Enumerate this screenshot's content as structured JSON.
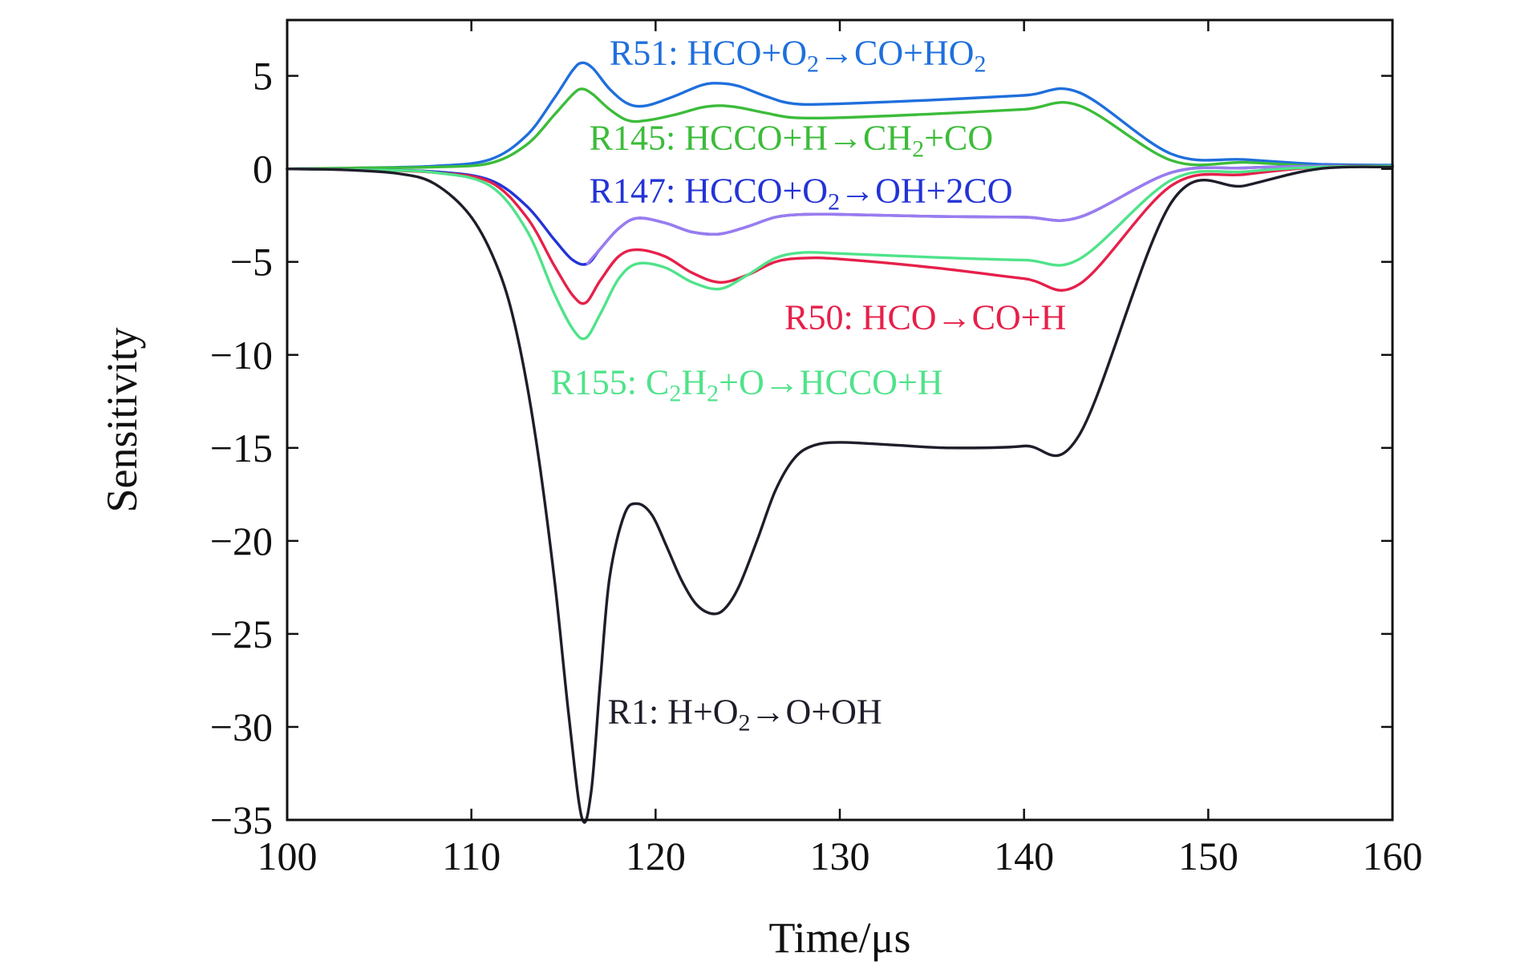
{
  "chart_data": {
    "type": "line",
    "xlabel": "Time/μs",
    "ylabel": "Sensitivity",
    "xlim": [
      100,
      160
    ],
    "ylim": [
      -35,
      8
    ],
    "xticks": [
      100,
      110,
      120,
      130,
      140,
      150,
      160
    ],
    "yticks": [
      5,
      0,
      -5,
      -10,
      -15,
      -20,
      -25,
      -30,
      -35
    ],
    "tick_labels": {
      "x": [
        "100",
        "110",
        "120",
        "130",
        "140",
        "150",
        "160"
      ],
      "y": [
        "5",
        "0",
        "−5",
        "−10",
        "−15",
        "−20",
        "−25",
        "−30",
        "−35"
      ]
    },
    "grid": false,
    "legend": "none",
    "series": [
      {
        "key": "r51",
        "color": "#1f6fdc",
        "label": {
          "parts": [
            [
              "R51: HCO+O",
              ""
            ],
            [
              "2",
              "sub"
            ],
            [
              "→CO+HO",
              ""
            ],
            [
              "2",
              "sub"
            ]
          ],
          "at": [
            117.5,
            5.6
          ]
        },
        "x": [
          100,
          104,
          108,
          111,
          113,
          114.5,
          115.5,
          116,
          116.6,
          117.5,
          118.5,
          119.5,
          121,
          122.5,
          123.5,
          124.5,
          126,
          127.5,
          130,
          135,
          140,
          143,
          148,
          152,
          156,
          160
        ],
        "y": [
          0,
          0.05,
          0.15,
          0.5,
          1.8,
          3.8,
          5.3,
          5.7,
          5.4,
          4.3,
          3.5,
          3.4,
          3.9,
          4.5,
          4.6,
          4.45,
          3.9,
          3.5,
          3.5,
          3.7,
          3.95,
          4.1,
          0.8,
          0.5,
          0.25,
          0.2
        ]
      },
      {
        "key": "r145",
        "color": "#3cbc3a",
        "label": {
          "parts": [
            [
              "R145: HCCO+H→CH",
              ""
            ],
            [
              "2",
              "sub"
            ],
            [
              "+CO",
              ""
            ]
          ],
          "at": [
            116.4,
            1.05
          ]
        },
        "x": [
          100,
          104,
          108,
          111,
          113,
          114.5,
          115.5,
          116,
          116.6,
          117.5,
          118.5,
          119.5,
          121,
          122.5,
          123.5,
          124.5,
          126,
          127.5,
          130,
          135,
          140,
          143,
          148,
          152,
          156,
          160
        ],
        "y": [
          0,
          0.05,
          0.1,
          0.3,
          1.3,
          2.9,
          4.0,
          4.3,
          4.0,
          3.2,
          2.6,
          2.6,
          2.9,
          3.3,
          3.4,
          3.3,
          3.0,
          2.75,
          2.75,
          2.95,
          3.2,
          3.4,
          0.45,
          0.35,
          0.15,
          0.15
        ]
      },
      {
        "key": "r147",
        "color": "#2333d6",
        "label": {
          "parts": [
            [
              "R147: HCCO+O",
              ""
            ],
            [
              "2",
              "sub"
            ],
            [
              "→OH+2CO",
              ""
            ]
          ],
          "at": [
            116.4,
            -1.8
          ]
        },
        "x": [
          100,
          104,
          108,
          111,
          113,
          114.5,
          115.5,
          116.3,
          117,
          118,
          119,
          120.5,
          122,
          123.5,
          125,
          126.5,
          128,
          130,
          135,
          140,
          143,
          148,
          152,
          156,
          160
        ],
        "y": [
          0,
          -0.05,
          -0.15,
          -0.6,
          -2.0,
          -3.8,
          -4.9,
          -5.1,
          -4.3,
          -3.2,
          -2.65,
          -2.9,
          -3.4,
          -3.5,
          -3.1,
          -2.6,
          -2.45,
          -2.45,
          -2.55,
          -2.6,
          -2.6,
          -0.2,
          0.05,
          0.15,
          0.15
        ]
      },
      {
        "key": "r147-tail",
        "color": "#9a7cf0",
        "x": [],
        "y": []
      },
      {
        "key": "r50",
        "color": "#e6204a",
        "label": {
          "parts": [
            [
              "R50: HCO→CO+H",
              ""
            ]
          ],
          "at": [
            127,
            -8.6
          ]
        },
        "x": [
          100,
          104,
          108,
          111,
          113,
          114.5,
          115.5,
          116.2,
          117,
          118,
          119,
          120.5,
          122,
          123.5,
          125,
          126.5,
          128,
          130,
          135,
          140,
          143,
          148,
          152,
          156,
          160
        ],
        "y": [
          0,
          -0.05,
          -0.2,
          -0.7,
          -2.6,
          -5.2,
          -6.8,
          -7.2,
          -6.0,
          -4.7,
          -4.35,
          -4.7,
          -5.6,
          -6.1,
          -5.7,
          -5.0,
          -4.8,
          -4.85,
          -5.3,
          -5.9,
          -6.2,
          -0.9,
          -0.3,
          0.1,
          0.15
        ]
      },
      {
        "key": "r155",
        "color": "#4fe38a",
        "label": {
          "parts": [
            [
              "R155: C",
              ""
            ],
            [
              "2",
              "sub"
            ],
            [
              "H",
              ""
            ],
            [
              "2",
              "sub"
            ],
            [
              "+O→HCCO+H",
              ""
            ]
          ],
          "at": [
            114.3,
            -12.1
          ]
        },
        "x": [
          100,
          104,
          108,
          111,
          113,
          114.5,
          115.5,
          116.2,
          117,
          118,
          119,
          120.5,
          122,
          123.5,
          125,
          126.5,
          128,
          130,
          135,
          140,
          143,
          148,
          152,
          156,
          160
        ],
        "y": [
          0,
          -0.05,
          -0.2,
          -0.9,
          -3.3,
          -6.7,
          -8.6,
          -9.1,
          -7.8,
          -5.9,
          -5.1,
          -5.3,
          -6.1,
          -6.45,
          -5.7,
          -4.8,
          -4.5,
          -4.55,
          -4.75,
          -4.9,
          -4.85,
          -0.6,
          -0.15,
          0.1,
          0.15
        ]
      },
      {
        "key": "r1",
        "color": "#1e1e2a",
        "label": {
          "parts": [
            [
              "R1: H+O",
              ""
            ],
            [
              "2",
              "sub"
            ],
            [
              "→O+OH",
              ""
            ]
          ],
          "at": [
            117.4,
            -29.8
          ]
        },
        "x": [
          100,
          103,
          106,
          108,
          110,
          111.5,
          112.5,
          113.5,
          114.5,
          115.3,
          116,
          116.5,
          117,
          117.5,
          118.3,
          119,
          119.8,
          120.6,
          121.4,
          122.2,
          123,
          123.7,
          124.5,
          125.5,
          126.5,
          127.5,
          128.5,
          130,
          133,
          136,
          140,
          143,
          148,
          152,
          156,
          160
        ],
        "y": [
          0,
          -0.05,
          -0.25,
          -0.8,
          -2.6,
          -5.5,
          -9.0,
          -14.5,
          -22.0,
          -29.5,
          -34.9,
          -33.5,
          -27.5,
          -22.0,
          -18.6,
          -18.0,
          -18.6,
          -20.3,
          -22.1,
          -23.4,
          -23.9,
          -23.7,
          -22.5,
          -20.0,
          -17.3,
          -15.6,
          -14.9,
          -14.7,
          -14.85,
          -15.0,
          -14.9,
          -14.3,
          -1.8,
          -0.9,
          0.0,
          0.1
        ]
      }
    ]
  }
}
